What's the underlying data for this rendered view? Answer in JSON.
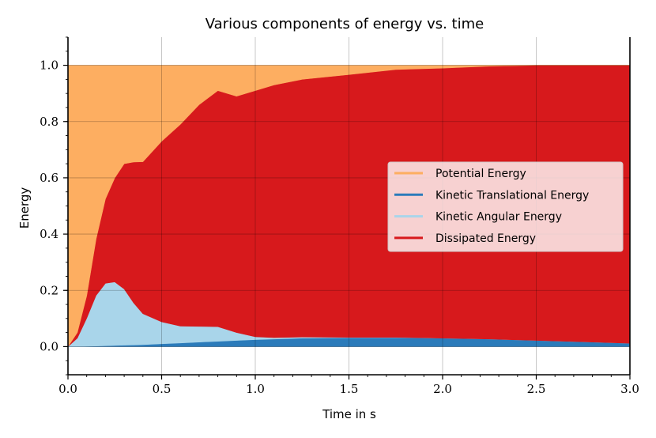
{
  "chart_data": {
    "type": "area",
    "title": "Various components of energy vs. time",
    "xlabel": "Time in s",
    "ylabel": "Energy",
    "xlim": [
      0.0,
      3.0
    ],
    "ylim": [
      -0.1,
      1.1
    ],
    "xticks": [
      "0.0",
      "0.5",
      "1.0",
      "1.5",
      "2.0",
      "2.5",
      "3.0"
    ],
    "yticks": [
      "0.0",
      "0.2",
      "0.4",
      "0.6",
      "0.8",
      "1.0"
    ],
    "grid": true,
    "stacked": true,
    "legend_position": "center-right",
    "x": [
      0.0,
      0.05,
      0.1,
      0.15,
      0.2,
      0.25,
      0.3,
      0.35,
      0.4,
      0.5,
      0.6,
      0.7,
      0.8,
      0.9,
      1.0,
      1.1,
      1.25,
      1.5,
      1.75,
      2.0,
      2.25,
      2.5,
      2.75,
      3.0
    ],
    "series": [
      {
        "name": "Kinetic Translational Energy",
        "color": "#2b7bba",
        "values": [
          0.0,
          0.0,
          0.001,
          0.002,
          0.003,
          0.004,
          0.005,
          0.006,
          0.007,
          0.01,
          0.013,
          0.016,
          0.019,
          0.022,
          0.025,
          0.027,
          0.03,
          0.032,
          0.032,
          0.03,
          0.027,
          0.022,
          0.017,
          0.012
        ]
      },
      {
        "name": "Kinetic Angular Energy",
        "color": "#a9d5ea",
        "values": [
          0.0,
          0.03,
          0.1,
          0.18,
          0.222,
          0.226,
          0.2,
          0.15,
          0.11,
          0.078,
          0.06,
          0.056,
          0.052,
          0.028,
          0.01,
          0.005,
          0.004,
          0.001,
          0.001,
          0.0,
          0.0,
          0.0,
          0.0,
          0.0
        ]
      },
      {
        "name": "Dissipated Energy",
        "color": "#d7191c",
        "values": [
          0.0,
          0.02,
          0.08,
          0.2,
          0.3,
          0.37,
          0.445,
          0.5,
          0.54,
          0.642,
          0.717,
          0.788,
          0.839,
          0.84,
          0.875,
          0.898,
          0.916,
          0.934,
          0.952,
          0.96,
          0.97,
          0.978,
          0.983,
          0.988
        ]
      },
      {
        "name": "Potential Energy",
        "color": "#fdae61",
        "values": [
          1.0,
          0.95,
          0.819,
          0.618,
          0.475,
          0.4,
          0.35,
          0.344,
          0.343,
          0.27,
          0.21,
          0.14,
          0.09,
          0.11,
          0.09,
          0.07,
          0.05,
          0.033,
          0.015,
          0.01,
          0.003,
          0.0,
          0.0,
          0.0
        ]
      }
    ],
    "legend_order": [
      "Potential Energy",
      "Kinetic Translational Energy",
      "Kinetic Angular Energy",
      "Dissipated Energy"
    ]
  }
}
